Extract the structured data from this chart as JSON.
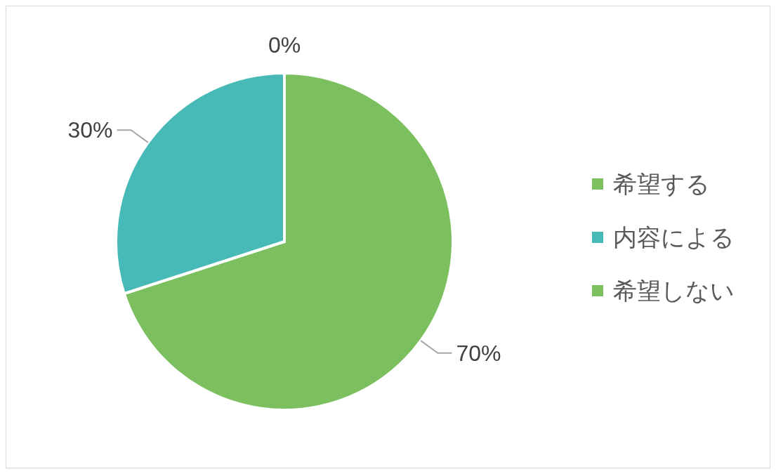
{
  "chart_data": {
    "type": "pie",
    "categories": [
      "希望する",
      "内容による",
      "希望しない"
    ],
    "values": [
      70,
      30,
      0
    ],
    "colors": [
      "#7bbf5e",
      "#47bab7",
      "#7bbf5e"
    ],
    "value_labels": [
      "70%",
      "30%",
      "0%"
    ],
    "legend": "right"
  }
}
